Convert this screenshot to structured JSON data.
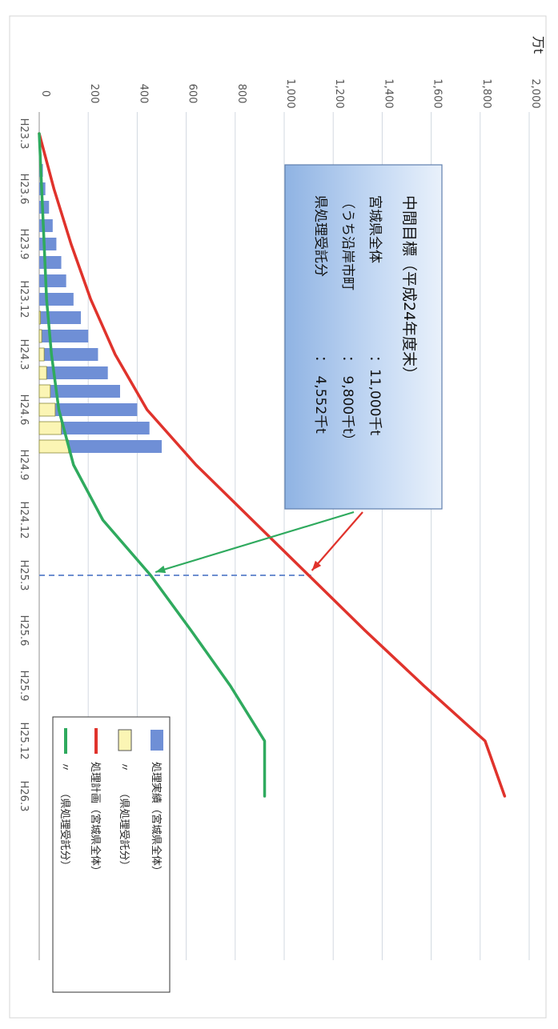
{
  "chart_data": {
    "type": "bar",
    "orientation": "rotated-90-clockwise",
    "unit_label": "万t",
    "categories": [
      "H23.3",
      "H23.6",
      "H23.9",
      "H23.12",
      "H24.3",
      "H24.6",
      "H24.9",
      "H24.12",
      "H25.3",
      "H25.6",
      "H25.9",
      "H25.12",
      "H26.3"
    ],
    "y_ticks": [
      "0",
      "200",
      "400",
      "600",
      "800",
      "1,000",
      "1,200",
      "1,400",
      "1,600",
      "1,800",
      "2,000"
    ],
    "ylim": [
      0,
      2000
    ],
    "grid": true,
    "legend_position": "bottom-left",
    "bars": {
      "x": [
        "H23.4",
        "H23.5",
        "H23.6",
        "H23.7",
        "H23.8",
        "H23.9",
        "H23.10",
        "H23.11",
        "H23.12",
        "H24.1",
        "H24.2",
        "H24.3",
        "H24.4",
        "H24.5",
        "H24.6",
        "H24.7",
        "H24.8"
      ],
      "series": [
        {
          "name": "処理実績（宮城県全体）",
          "color": "#6f8fd6",
          "values": [
            5,
            15,
            25,
            40,
            55,
            70,
            90,
            110,
            140,
            170,
            200,
            240,
            280,
            330,
            400,
            450,
            500
          ]
        },
        {
          "name": "〃　　（県処理受託分）",
          "color": "#fbf5b4",
          "values": [
            0,
            0,
            0,
            0,
            0,
            0,
            0,
            0,
            0,
            5,
            10,
            20,
            30,
            45,
            65,
            90,
            120
          ]
        }
      ]
    },
    "lines": {
      "x": [
        "H23.3",
        "H23.6",
        "H23.9",
        "H23.12",
        "H24.3",
        "H24.6",
        "H24.9",
        "H24.12",
        "H25.3",
        "H25.6",
        "H25.9",
        "H25.12",
        "H26.3"
      ],
      "series": [
        {
          "name": "処理計画（宮城県全体）",
          "color": "#e0332c",
          "values": [
            0,
            60,
            130,
            210,
            310,
            440,
            640,
            870,
            1100,
            1330,
            1570,
            1820,
            1900
          ]
        },
        {
          "name": "〃　　（県処理受託分）",
          "color": "#2faa5e",
          "values": [
            0,
            10,
            20,
            30,
            50,
            80,
            140,
            260,
            455,
            620,
            780,
            920,
            920
          ]
        }
      ]
    },
    "reference_line": {
      "x": "H25.3",
      "color": "#6d8fd0",
      "style": "dashed"
    },
    "annotation": {
      "title": "中間目標（平成24年度末）",
      "lines": [
        [
          "宮城県全体",
          "：11,000千t"
        ],
        [
          "（うち沿岸市町",
          "：　9,800千t）"
        ],
        [
          "県処理受託分",
          "：　4,552千t"
        ]
      ]
    },
    "legend": [
      {
        "label": "処理実績（宮城県全体）",
        "kind": "bar",
        "color": "#6f8fd6"
      },
      {
        "label": "〃　　（県処理受託分）",
        "kind": "bar",
        "color": "#fbf5b4"
      },
      {
        "label": "処理計画（宮城県全体）",
        "kind": "line",
        "color": "#e0332c"
      },
      {
        "label": "〃　　（県処理受託分）",
        "kind": "line",
        "color": "#2faa5e"
      }
    ]
  }
}
